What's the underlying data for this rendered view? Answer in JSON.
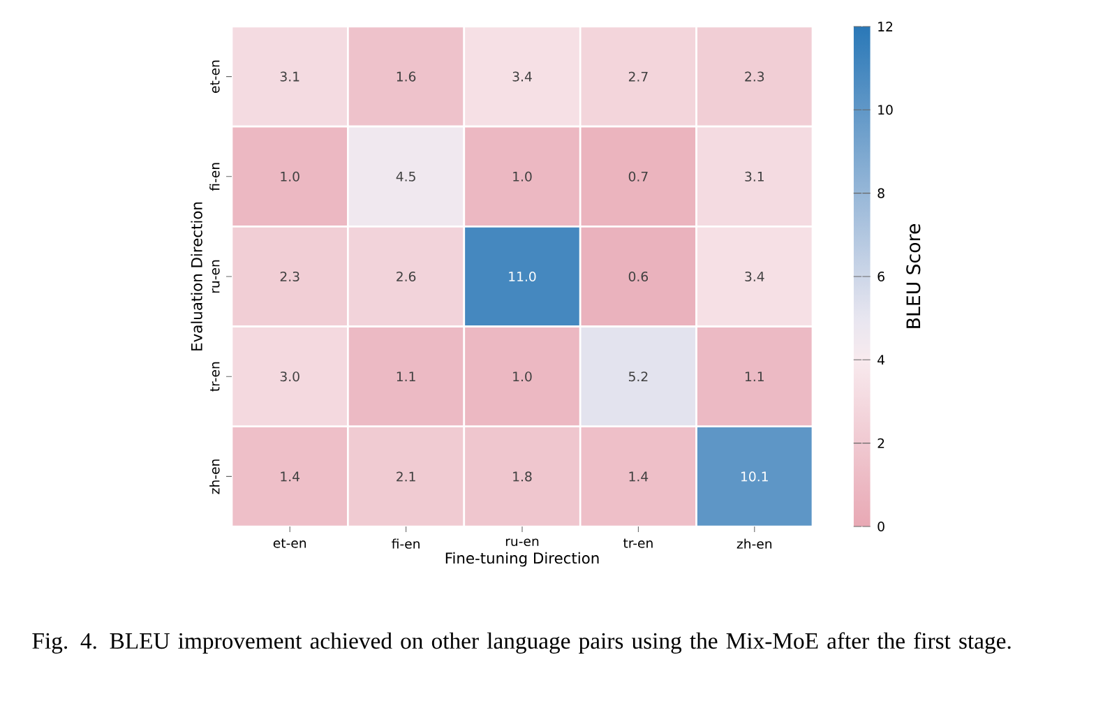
{
  "chart_data": {
    "type": "heatmap",
    "xlabel": "Fine-tuning Direction",
    "ylabel": "Evaluation Direction",
    "clabel": "BLEU Score",
    "categories": [
      "et-en",
      "fi-en",
      "ru-en",
      "tr-en",
      "zh-en"
    ],
    "y_categories": [
      "et-en",
      "fi-en",
      "ru-en",
      "tr-en",
      "zh-en"
    ],
    "cells": [
      [
        3.1,
        1.6,
        3.4,
        2.7,
        2.3
      ],
      [
        1.0,
        4.5,
        1.0,
        0.7,
        3.1
      ],
      [
        2.3,
        2.6,
        11.0,
        0.6,
        3.4
      ],
      [
        3.0,
        1.1,
        1.0,
        5.2,
        1.1
      ],
      [
        1.4,
        2.1,
        1.8,
        1.4,
        10.1
      ]
    ],
    "cell_labels": [
      [
        "3.1",
        "1.6",
        "3.4",
        "2.7",
        "2.3"
      ],
      [
        "1.0",
        "4.5",
        "1.0",
        "0.7",
        "3.1"
      ],
      [
        "2.3",
        "2.6",
        "11.0",
        "0.6",
        "3.4"
      ],
      [
        "3.0",
        "1.1",
        "1.0",
        "5.2",
        "1.1"
      ],
      [
        "1.4",
        "2.1",
        "1.8",
        "1.4",
        "10.1"
      ]
    ],
    "clim": [
      0,
      12
    ],
    "cticks": [
      0,
      2,
      4,
      6,
      8,
      10,
      12
    ],
    "annotations": [
      "Fig. 4.  BLEU improvement achieved on other language pairs using the Mix-MoE after the first stage."
    ]
  }
}
